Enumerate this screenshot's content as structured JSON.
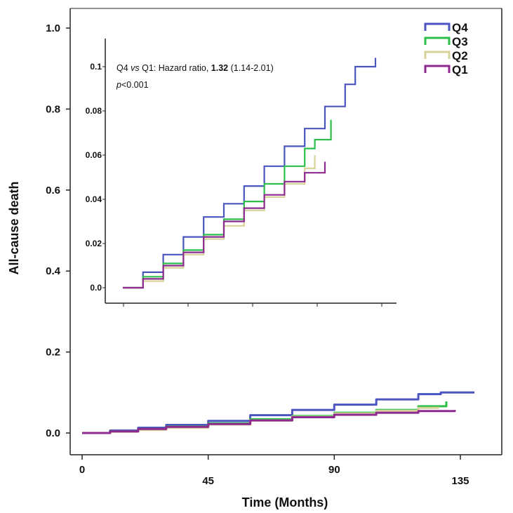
{
  "chart_data": {
    "type": "line",
    "xlabel": "Time (Months)",
    "ylabel": "All-cause death",
    "xlim": [
      0,
      145
    ],
    "ylim": [
      0,
      1.0
    ],
    "x_ticks": [
      "0",
      "45",
      "90",
      "135"
    ],
    "y_ticks": [
      "0.0",
      "0.2",
      "0.4",
      "0.6",
      "0.8",
      "1.0"
    ],
    "legend_position": "top-right",
    "series": [
      {
        "name": "Q4",
        "color": "#4a55c0",
        "x": [
          0,
          10,
          20,
          30,
          45,
          60,
          75,
          90,
          105,
          120,
          128,
          140
        ],
        "y": [
          0,
          0.006,
          0.013,
          0.02,
          0.03,
          0.044,
          0.057,
          0.07,
          0.083,
          0.096,
          0.1,
          0.1
        ]
      },
      {
        "name": "Q3",
        "color": "#2dbf4a",
        "x": [
          0,
          10,
          20,
          30,
          45,
          60,
          75,
          90,
          105,
          120,
          130
        ],
        "y": [
          0,
          0.004,
          0.01,
          0.016,
          0.024,
          0.034,
          0.042,
          0.05,
          0.057,
          0.066,
          0.078
        ]
      },
      {
        "name": "Q2",
        "color": "#d8d39a",
        "x": [
          0,
          10,
          20,
          30,
          45,
          60,
          75,
          90,
          105,
          120,
          127
        ],
        "y": [
          0,
          0.003,
          0.008,
          0.013,
          0.021,
          0.031,
          0.04,
          0.048,
          0.055,
          0.062,
          0.065
        ]
      },
      {
        "name": "Q1",
        "color": "#8e2a8f",
        "x": [
          0,
          10,
          20,
          30,
          45,
          60,
          75,
          90,
          105,
          120,
          133
        ],
        "y": [
          0,
          0.004,
          0.01,
          0.015,
          0.022,
          0.031,
          0.039,
          0.045,
          0.05,
          0.054,
          0.057
        ]
      }
    ],
    "inset": {
      "ylim": [
        0,
        0.1
      ],
      "y_ticks": [
        "0.0",
        "0.02",
        "0.04",
        "0.06",
        "0.08",
        "0.1"
      ],
      "annotation": {
        "part1": "Q4 ",
        "part2": "vs",
        "part3": " Q1: Hazard ratio, ",
        "part4": "1.32",
        "part5": " (1.14-2.01)",
        "line2_p": "p",
        "line2_rest": "<0.001"
      },
      "series": [
        {
          "name": "Q4",
          "x": [
            0,
            10,
            20,
            30,
            40,
            50,
            60,
            70,
            80,
            90,
            100,
            110,
            115,
            125
          ],
          "y": [
            0,
            0.007,
            0.015,
            0.023,
            0.032,
            0.038,
            0.046,
            0.055,
            0.064,
            0.072,
            0.082,
            0.092,
            0.1,
            0.104
          ]
        },
        {
          "name": "Q3",
          "x": [
            0,
            10,
            20,
            30,
            40,
            50,
            60,
            70,
            80,
            90,
            95,
            103
          ],
          "y": [
            0,
            0.005,
            0.011,
            0.017,
            0.024,
            0.031,
            0.039,
            0.047,
            0.055,
            0.063,
            0.067,
            0.076
          ]
        },
        {
          "name": "Q2",
          "x": [
            0,
            10,
            20,
            30,
            40,
            50,
            60,
            70,
            80,
            90,
            95
          ],
          "y": [
            0,
            0.003,
            0.009,
            0.015,
            0.022,
            0.028,
            0.035,
            0.041,
            0.047,
            0.054,
            0.06
          ]
        },
        {
          "name": "Q1",
          "x": [
            0,
            10,
            20,
            30,
            40,
            50,
            60,
            70,
            80,
            90,
            100
          ],
          "y": [
            0,
            0.004,
            0.01,
            0.016,
            0.023,
            0.03,
            0.036,
            0.042,
            0.048,
            0.052,
            0.057
          ]
        }
      ]
    }
  }
}
